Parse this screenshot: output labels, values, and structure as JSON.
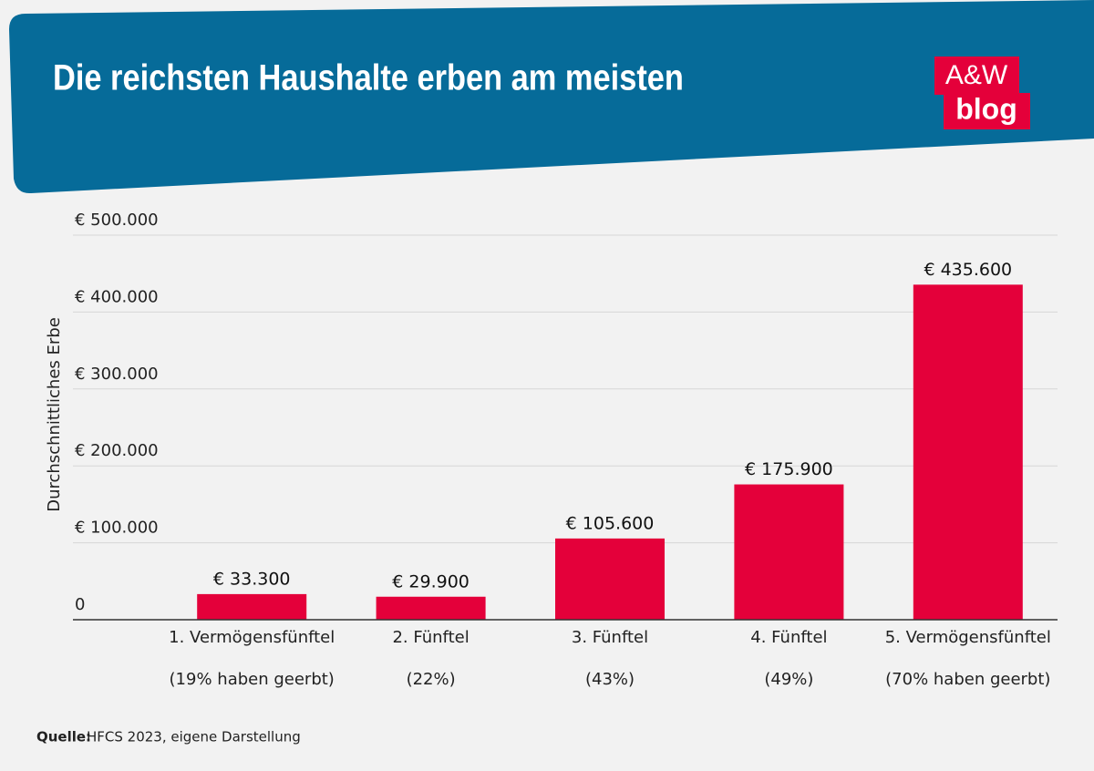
{
  "chart_data": {
    "type": "bar",
    "title": "Die reichsten Haushalte erben am meisten",
    "y_label": "Durchschnittliches Erbe",
    "categories": [
      "1. Vermögensfünftel",
      "2. Fünftel",
      "3. Fünftel",
      "4. Fünftel",
      "5. Vermögensfünftel"
    ],
    "subcategories": [
      "(19% haben geerbt)",
      "(22%)",
      "(43%)",
      "(49%)",
      "(70% haben geerbt)"
    ],
    "values": [
      33300,
      29900,
      105600,
      175900,
      435600
    ],
    "value_labels": [
      "€ 33.300",
      "€ 29.900",
      "€ 105.600",
      "€ 175.900",
      "€ 435.600"
    ],
    "color": "#e4003a",
    "ylim": [
      0,
      500000
    ],
    "yticks": [
      0,
      {
        "value": 100000,
        "label": "€ 100.000"
      },
      {
        "value": 200000,
        "label": "€ 200.000"
      },
      {
        "value": 300000,
        "label": "€ 300.000"
      },
      {
        "value": 400000,
        "label": "€ 400.000"
      },
      {
        "value": 500000,
        "label": "€ 500.000"
      }
    ],
    "grid": true,
    "source_label": "Quelle:",
    "source": "HFCS 2023, eigene Darstellung"
  },
  "logo": {
    "line1": "A&W",
    "line2": "blog"
  }
}
